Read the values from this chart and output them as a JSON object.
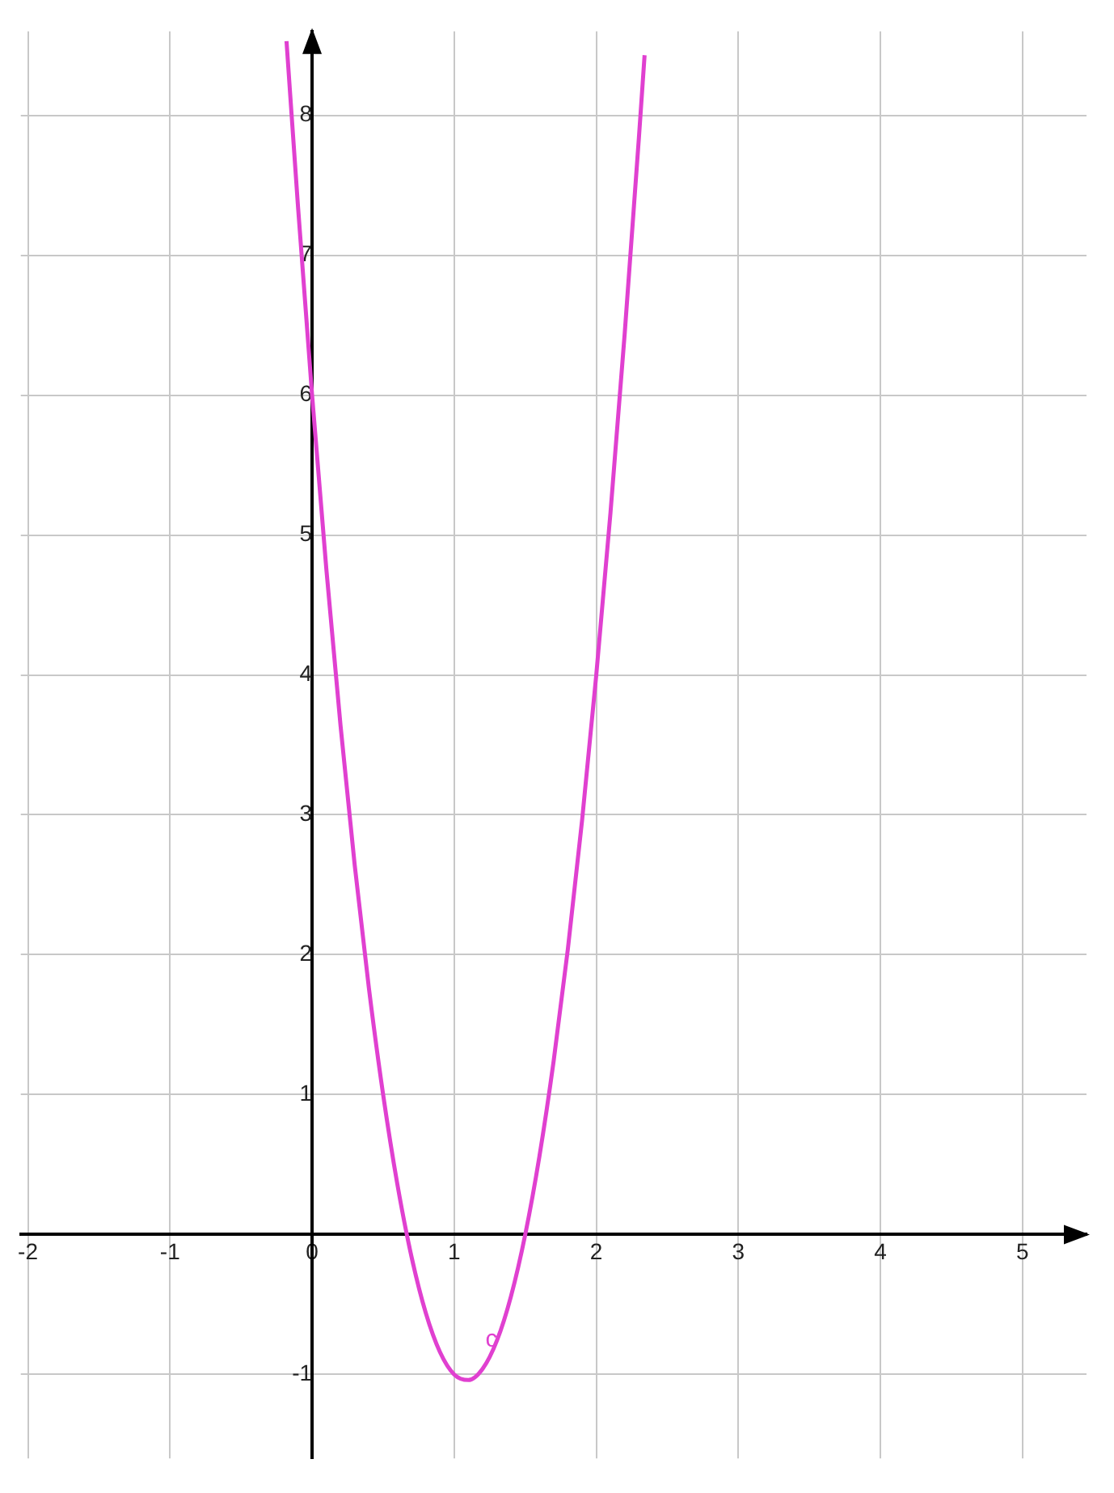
{
  "chart_data": {
    "type": "line",
    "x": [
      -0.18,
      -0.1,
      0,
      0.1,
      0.2,
      0.3,
      0.4,
      0.5,
      0.6,
      0.7,
      0.8,
      0.9,
      1.0,
      1.1,
      1.2,
      1.3,
      1.4,
      1.5,
      1.6,
      1.7,
      1.8,
      1.9,
      2.0,
      2.1,
      2.2,
      2.3,
      2.34
    ],
    "series": [
      {
        "color": "#e040d0",
        "values": [
          8.53,
          7.36,
          6,
          4.76,
          3.64,
          2.64,
          1.76,
          1,
          0.36,
          -0.16,
          -0.56,
          -0.84,
          -1,
          -1.04,
          -0.96,
          -0.76,
          -0.44,
          0,
          0.56,
          1.24,
          2.04,
          2.96,
          4,
          5.16,
          6.44,
          7.84,
          8.43
        ]
      }
    ],
    "xlim": [
      -2.05,
      5.45
    ],
    "ylim": [
      -1.6,
      8.6
    ],
    "xticks": [
      -2,
      -1,
      0,
      1,
      2,
      3,
      4,
      5
    ],
    "yticks": [
      -1,
      1,
      2,
      3,
      4,
      5,
      6,
      7,
      8
    ],
    "annotations": [
      {
        "text": "c",
        "x": 1.22,
        "y": -0.8
      }
    ],
    "grid": true,
    "legend": false,
    "marker": "none",
    "line_style": "solid"
  }
}
